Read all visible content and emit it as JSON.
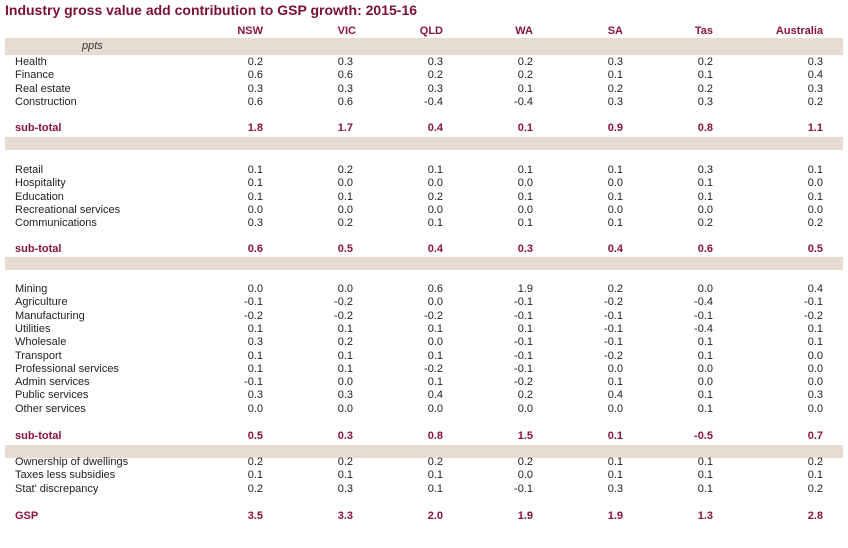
{
  "title": "Industry gross value add contribution to GSP growth: 2015-16",
  "unit_label": "ppts",
  "columns": [
    "NSW",
    "VIC",
    "QLD",
    "WA",
    "SA",
    "Tas",
    "Australia"
  ],
  "groups": [
    {
      "rows": [
        {
          "label": "Health",
          "values": [
            "0.2",
            "0.3",
            "0.3",
            "0.2",
            "0.3",
            "0.2",
            "0.3"
          ]
        },
        {
          "label": "Finance",
          "values": [
            "0.6",
            "0.6",
            "0.2",
            "0.2",
            "0.1",
            "0.1",
            "0.4"
          ]
        },
        {
          "label": "Real estate",
          "values": [
            "0.3",
            "0.3",
            "0.3",
            "0.1",
            "0.2",
            "0.2",
            "0.3"
          ]
        },
        {
          "label": "Construction",
          "values": [
            "0.6",
            "0.6",
            "-0.4",
            "-0.4",
            "0.3",
            "0.3",
            "0.2"
          ]
        }
      ],
      "subtotal": {
        "label": "sub-total",
        "values": [
          "1.8",
          "1.7",
          "0.4",
          "0.1",
          "0.9",
          "0.8",
          "1.1"
        ]
      }
    },
    {
      "rows": [
        {
          "label": "Retail",
          "values": [
            "0.1",
            "0.2",
            "0.1",
            "0.1",
            "0.1",
            "0.3",
            "0.1"
          ]
        },
        {
          "label": "Hospitality",
          "values": [
            "0.1",
            "0.0",
            "0.0",
            "0.0",
            "0.0",
            "0.1",
            "0.0"
          ]
        },
        {
          "label": "Education",
          "values": [
            "0.1",
            "0.1",
            "0.2",
            "0.1",
            "0.1",
            "0.1",
            "0.1"
          ]
        },
        {
          "label": "Recreational services",
          "values": [
            "0.0",
            "0.0",
            "0.0",
            "0.0",
            "0.0",
            "0.0",
            "0.0"
          ]
        },
        {
          "label": "Communications",
          "values": [
            "0.3",
            "0.2",
            "0.1",
            "0.1",
            "0.1",
            "0.2",
            "0.2"
          ]
        }
      ],
      "subtotal": {
        "label": "sub-total",
        "values": [
          "0.6",
          "0.5",
          "0.4",
          "0.3",
          "0.4",
          "0.6",
          "0.5"
        ]
      }
    },
    {
      "rows": [
        {
          "label": "Mining",
          "values": [
            "0.0",
            "0.0",
            "0.6",
            "1.9",
            "0.2",
            "0.0",
            "0.4"
          ]
        },
        {
          "label": "Agriculture",
          "values": [
            "-0.1",
            "-0.2",
            "0.0",
            "-0.1",
            "-0.2",
            "-0.4",
            "-0.1"
          ]
        },
        {
          "label": "Manufacturing",
          "values": [
            "-0.2",
            "-0.2",
            "-0.2",
            "-0.1",
            "-0.1",
            "-0.1",
            "-0.2"
          ]
        },
        {
          "label": "Utilities",
          "values": [
            "0.1",
            "0.1",
            "0.1",
            "0.1",
            "-0.1",
            "-0.4",
            "0.1"
          ]
        },
        {
          "label": "Wholesale",
          "values": [
            "0.3",
            "0.2",
            "0.0",
            "-0.1",
            "-0.1",
            "0.1",
            "0.1"
          ]
        },
        {
          "label": "Transport",
          "values": [
            "0.1",
            "0.1",
            "0.1",
            "-0.1",
            "-0.2",
            "0.1",
            "0.0"
          ]
        },
        {
          "label": "Professional services",
          "values": [
            "0.1",
            "0.1",
            "-0.2",
            "-0.1",
            "0.0",
            "0.0",
            "0.0"
          ]
        },
        {
          "label": "Admin services",
          "values": [
            "-0.1",
            "0.0",
            "0.1",
            "-0.2",
            "0.1",
            "0.0",
            "0.0"
          ]
        },
        {
          "label": "Public services",
          "values": [
            "0.3",
            "0.3",
            "0.4",
            "0.2",
            "0.4",
            "0.1",
            "0.3"
          ]
        },
        {
          "label": "Other services",
          "values": [
            "0.0",
            "0.0",
            "0.0",
            "0.0",
            "0.0",
            "0.1",
            "0.0"
          ]
        }
      ],
      "subtotal": {
        "label": "sub-total",
        "values": [
          "0.5",
          "0.3",
          "0.8",
          "1.5",
          "0.1",
          "-0.5",
          "0.7"
        ]
      }
    },
    {
      "rows": [
        {
          "label": "Ownership of dwellings",
          "values": [
            "0.2",
            "0.2",
            "0.2",
            "0.2",
            "0.1",
            "0.1",
            "0.2"
          ]
        },
        {
          "label": "Taxes less subsidies",
          "values": [
            "0.1",
            "0.1",
            "0.1",
            "0.0",
            "0.1",
            "0.1",
            "0.1"
          ]
        },
        {
          "label": "Stat' discrepancy",
          "values": [
            "0.2",
            "0.3",
            "0.1",
            "-0.1",
            "0.3",
            "0.1",
            "0.2"
          ]
        }
      ],
      "subtotal": {
        "label": "GSP",
        "values": [
          "3.5",
          "3.3",
          "2.0",
          "1.9",
          "1.9",
          "1.3",
          "2.8"
        ]
      }
    }
  ],
  "colors": {
    "accent": "#8b1538",
    "band": "#e6dcd2"
  }
}
